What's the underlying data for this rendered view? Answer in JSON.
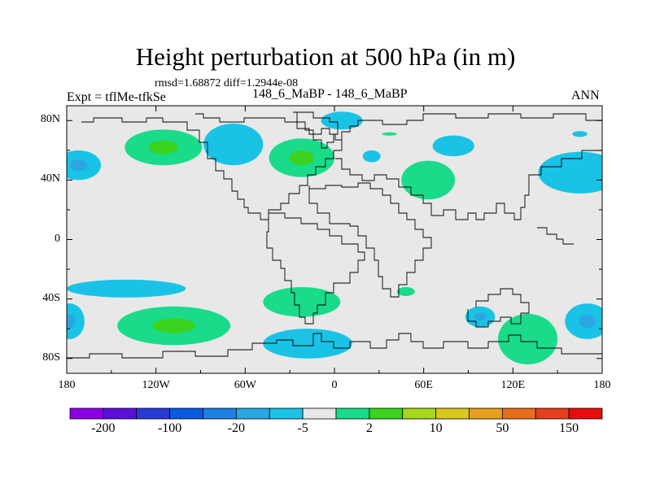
{
  "title": "Height perturbation at 500 hPa (in m)",
  "stats": {
    "rmsd_label": "rmsd=",
    "rmsd": "1.68872",
    "diff_label": "diff=",
    "diff": "1.2944e-08"
  },
  "expt_label": "Expt = tflMe-tfkSe",
  "case_label": "148_6_MaBP - 148_6_MaBP",
  "season": "ANN",
  "map": {
    "projection": "cylindrical-equidistant",
    "lat_ticks": [
      "80N",
      "40N",
      "0",
      "40S",
      "80S"
    ],
    "lat_values": [
      80,
      40,
      0,
      -40,
      -80
    ],
    "lon_ticks": [
      "180",
      "120W",
      "60W",
      "0",
      "60E",
      "120E",
      "180"
    ],
    "lon_values": [
      -180,
      -120,
      -60,
      0,
      60,
      120,
      180
    ],
    "background_color": "#e8e8e8"
  },
  "colorbar": {
    "colors": [
      "#8a00e6",
      "#5a10d8",
      "#2a3ad6",
      "#0a5ae0",
      "#1a80e2",
      "#2aa6e4",
      "#1ac3e6",
      "#e8e8e8",
      "#1adb8a",
      "#3cd21e",
      "#a6d81e",
      "#d8c81e",
      "#e6a01e",
      "#e66e1e",
      "#e6401e",
      "#e60e0e"
    ],
    "tick_labels": [
      "-200",
      "-100",
      "-20",
      "-5",
      "2",
      "10",
      "50",
      "150"
    ]
  },
  "chart_data": {
    "type": "heatmap",
    "title": "Height perturbation at 500 hPa (in m)",
    "xlabel": "",
    "ylabel": "",
    "xlim": [
      -180,
      180
    ],
    "ylim": [
      -90,
      90
    ],
    "contour_levels": [
      -300,
      -200,
      -150,
      -100,
      -50,
      -20,
      -10,
      -5,
      -2,
      2,
      5,
      10,
      20,
      50,
      100,
      150,
      200
    ],
    "fill_colors": [
      "#8a00e6",
      "#5a10d8",
      "#2a3ad6",
      "#0a5ae0",
      "#1a80e2",
      "#2aa6e4",
      "#1ac3e6",
      "#e8e8e8",
      "#1adb8a",
      "#3cd21e",
      "#a6d81e",
      "#d8c81e",
      "#e6a01e",
      "#e66e1e",
      "#e6401e",
      "#e60e0e"
    ],
    "anomalies": [
      {
        "name": "n-pacific-west",
        "lon": -172,
        "lat": 50,
        "rx": 15,
        "ry": 10,
        "level": -5,
        "core": -10,
        "color": "#1ac3e6",
        "core_color": "#2aa6e4"
      },
      {
        "name": "n-pacific-central",
        "lon": -115,
        "lat": 62,
        "rx": 26,
        "ry": 12,
        "level": 2,
        "core": 5,
        "color": "#1adb8a",
        "core_color": "#3cd21e"
      },
      {
        "name": "north-america",
        "lon": -68,
        "lat": 64,
        "rx": 20,
        "ry": 14,
        "level": -5,
        "color": "#1ac3e6"
      },
      {
        "name": "n-atlantic",
        "lon": -22,
        "lat": 55,
        "rx": 22,
        "ry": 13,
        "level": 2,
        "core": 5,
        "color": "#1adb8a",
        "core_color": "#3cd21e"
      },
      {
        "name": "scandinavia",
        "lon": 5,
        "lat": 80,
        "rx": 14,
        "ry": 6,
        "level": -5,
        "color": "#1ac3e6"
      },
      {
        "name": "w-russia",
        "lon": 25,
        "lat": 56,
        "rx": 6,
        "ry": 4,
        "level": -5,
        "color": "#1ac3e6"
      },
      {
        "name": "arctic-siberia",
        "lon": 37,
        "lat": 71,
        "rx": 5,
        "ry": 1,
        "level": 2,
        "color": "#1adb8a"
      },
      {
        "name": "central-asia",
        "lon": 63,
        "lat": 40,
        "rx": 18,
        "ry": 13,
        "level": 2,
        "color": "#1adb8a"
      },
      {
        "name": "e-siberia",
        "lon": 80,
        "lat": 63,
        "rx": 14,
        "ry": 7,
        "level": -5,
        "color": "#1ac3e6"
      },
      {
        "name": "beaufort",
        "lon": 165,
        "lat": 71,
        "rx": 5,
        "ry": 2,
        "level": -5,
        "color": "#1ac3e6"
      },
      {
        "name": "n-pacific-east",
        "lon": 165,
        "lat": 45,
        "rx": 28,
        "ry": 14,
        "level": -5,
        "color": "#1ac3e6"
      },
      {
        "name": "s-pacific",
        "lon": -140,
        "lat": -33,
        "rx": 40,
        "ry": 6,
        "level": -5,
        "color": "#1ac3e6"
      },
      {
        "name": "s-pacific-east",
        "lon": -108,
        "lat": -58,
        "rx": 38,
        "ry": 13,
        "level": 2,
        "core": 5,
        "color": "#1adb8a",
        "core_color": "#3cd21e"
      },
      {
        "name": "s-pacific-far-west",
        "lon": -178,
        "lat": -55,
        "rx": 10,
        "ry": 12,
        "level": -5,
        "core": -10,
        "color": "#1ac3e6",
        "core_color": "#2aa6e4"
      },
      {
        "name": "s-atlantic",
        "lon": -22,
        "lat": -42,
        "rx": 26,
        "ry": 10,
        "level": 2,
        "color": "#1adb8a"
      },
      {
        "name": "s-africa",
        "lon": 48,
        "lat": -35,
        "rx": 6,
        "ry": 3,
        "level": 2,
        "color": "#1adb8a"
      },
      {
        "name": "antarctic-atlantic",
        "lon": -18,
        "lat": -70,
        "rx": 30,
        "ry": 10,
        "level": -5,
        "color": "#1ac3e6"
      },
      {
        "name": "s-indian",
        "lon": 98,
        "lat": -52,
        "rx": 10,
        "ry": 7,
        "level": -5,
        "core": -10,
        "color": "#1ac3e6",
        "core_color": "#2aa6e4"
      },
      {
        "name": "australia-south",
        "lon": 130,
        "lat": -67,
        "rx": 20,
        "ry": 17,
        "level": 2,
        "color": "#1adb8a"
      },
      {
        "name": "s-pacific-west",
        "lon": 170,
        "lat": -55,
        "rx": 15,
        "ry": 12,
        "level": -5,
        "core": -10,
        "color": "#1ac3e6",
        "core_color": "#2aa6e4"
      }
    ]
  }
}
